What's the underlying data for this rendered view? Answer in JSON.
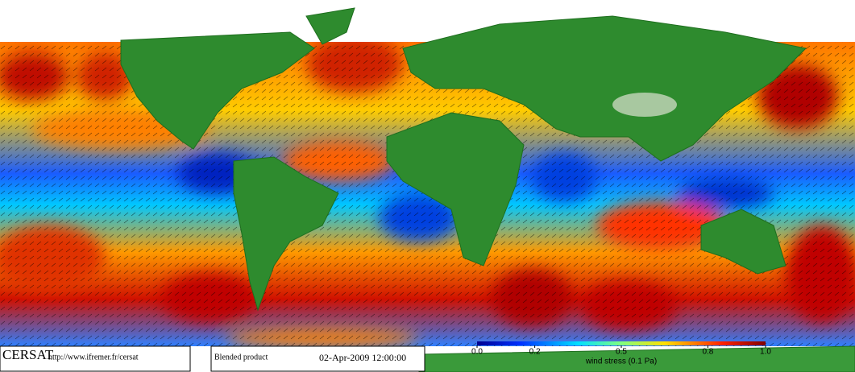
{
  "footer": {
    "logo": "CERSAT",
    "url": "http://www.ifremer.fr/cersat",
    "product": "Blended product",
    "date": "02-Apr-2009 12:00:00"
  },
  "colorbar": {
    "label": "wind stress (0.1 Pa)",
    "range": [
      0,
      1
    ],
    "ticks": [
      {
        "value": 0,
        "label": "0.0"
      },
      0.2,
      0.5,
      0.8,
      {
        "value": 1,
        "label": "1.0"
      }
    ]
  }
}
